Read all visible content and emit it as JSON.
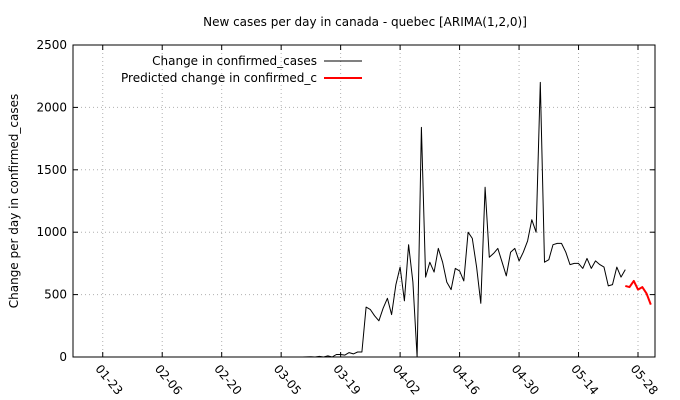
{
  "chart_data": {
    "type": "line",
    "title": "New cases per day in canada - quebec [ARIMA(1,2,0)]",
    "xlabel": "",
    "ylabel": "Change per day in confirmed_cases",
    "ylim": [
      0,
      2500
    ],
    "yticks": [
      0,
      500,
      1000,
      1500,
      2000,
      2500
    ],
    "xlim": [
      "2020-01-16",
      "2020-06-01"
    ],
    "xticks": [
      "2020-01-23",
      "2020-02-06",
      "2020-02-20",
      "2020-03-05",
      "2020-03-19",
      "2020-04-02",
      "2020-04-16",
      "2020-04-30",
      "2020-05-14",
      "2020-05-28"
    ],
    "xtick_labels": [
      "01-23",
      "02-06",
      "02-20",
      "03-05",
      "03-19",
      "04-02",
      "04-16",
      "04-30",
      "05-14",
      "05-28"
    ],
    "grid": true,
    "legend_position": "top-left",
    "series": [
      {
        "name": "Change in confirmed_cases",
        "color": "#000000",
        "x": [
          "2020-02-20",
          "2020-02-21",
          "2020-02-22",
          "2020-02-23",
          "2020-02-24",
          "2020-02-25",
          "2020-02-26",
          "2020-02-27",
          "2020-02-28",
          "2020-02-29",
          "2020-03-01",
          "2020-03-02",
          "2020-03-03",
          "2020-03-04",
          "2020-03-05",
          "2020-03-06",
          "2020-03-07",
          "2020-03-08",
          "2020-03-09",
          "2020-03-10",
          "2020-03-11",
          "2020-03-12",
          "2020-03-13",
          "2020-03-14",
          "2020-03-15",
          "2020-03-16",
          "2020-03-17",
          "2020-03-18",
          "2020-03-19",
          "2020-03-20",
          "2020-03-21",
          "2020-03-22",
          "2020-03-23",
          "2020-03-24",
          "2020-03-25",
          "2020-03-26",
          "2020-03-27",
          "2020-03-28",
          "2020-03-29",
          "2020-03-30",
          "2020-03-31",
          "2020-04-01",
          "2020-04-02",
          "2020-04-03",
          "2020-04-04",
          "2020-04-05",
          "2020-04-06",
          "2020-04-07",
          "2020-04-08",
          "2020-04-09",
          "2020-04-10",
          "2020-04-11",
          "2020-04-12",
          "2020-04-13",
          "2020-04-14",
          "2020-04-15",
          "2020-04-16",
          "2020-04-17",
          "2020-04-18",
          "2020-04-19",
          "2020-04-20",
          "2020-04-21",
          "2020-04-22",
          "2020-04-23",
          "2020-04-24",
          "2020-04-25",
          "2020-04-26",
          "2020-04-27",
          "2020-04-28",
          "2020-04-29",
          "2020-04-30",
          "2020-05-01",
          "2020-05-02",
          "2020-05-03",
          "2020-05-04",
          "2020-05-05",
          "2020-05-06",
          "2020-05-07",
          "2020-05-08",
          "2020-05-09",
          "2020-05-10",
          "2020-05-11",
          "2020-05-12",
          "2020-05-13",
          "2020-05-14",
          "2020-05-15",
          "2020-05-16",
          "2020-05-17",
          "2020-05-18",
          "2020-05-19",
          "2020-05-20",
          "2020-05-21",
          "2020-05-22",
          "2020-05-23",
          "2020-05-24",
          "2020-05-25"
        ],
        "y": [
          0,
          0,
          0,
          0,
          0,
          0,
          0,
          0,
          0,
          0,
          0,
          0,
          0,
          0,
          0,
          0,
          0,
          0,
          0,
          0,
          1,
          2,
          0,
          5,
          0,
          10,
          0,
          20,
          20,
          15,
          35,
          25,
          40,
          40,
          400,
          380,
          330,
          290,
          390,
          470,
          340,
          580,
          720,
          450,
          900,
          600,
          0,
          1840,
          640,
          760,
          680,
          870,
          760,
          600,
          540,
          710,
          690,
          610,
          1000,
          950,
          720,
          430,
          1360,
          800,
          830,
          870,
          760,
          650,
          840,
          870,
          770,
          840,
          930,
          1100,
          1000,
          2200,
          760,
          780,
          900,
          910,
          910,
          840,
          740,
          750,
          750,
          710,
          790,
          710,
          770,
          740,
          720,
          570,
          580,
          720,
          640,
          700
        ]
      },
      {
        "name": "Predicted change in confirmed_c",
        "color": "#ff0000",
        "x": [
          "2020-05-25",
          "2020-05-26",
          "2020-05-27",
          "2020-05-28",
          "2020-05-29",
          "2020-05-30",
          "2020-05-31"
        ],
        "y": [
          570,
          560,
          610,
          540,
          560,
          510,
          420
        ]
      }
    ]
  }
}
